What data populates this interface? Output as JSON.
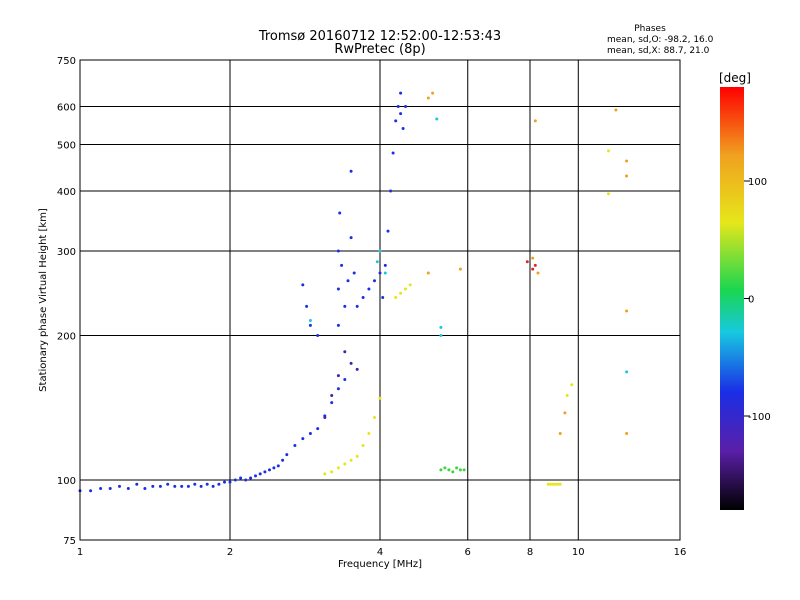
{
  "chart_data": {
    "type": "scatter",
    "title": "Tromsø 20160712 12:52:00-12:53:43",
    "subtitle": "RwPretec (8p)",
    "xlabel": "Frequency [MHz]",
    "ylabel": "Stationary phase Virtual Height [km]",
    "x_scale": "log",
    "y_scale": "log",
    "xlim": [
      1,
      16
    ],
    "ylim": [
      75,
      750
    ],
    "x_ticks": [
      1,
      2,
      4,
      6,
      8,
      10,
      16
    ],
    "y_ticks": [
      75,
      100,
      200,
      300,
      400,
      500,
      600,
      750
    ],
    "grid": true,
    "phase_legend": {
      "title": "Phases",
      "line_o": "mean, sd,O: -98.2, 16.0",
      "line_x": "mean, sd,X:  88.7, 21.0"
    },
    "colorbar": {
      "label": "[deg]",
      "range": [
        -180,
        180
      ],
      "ticks": [
        100,
        0,
        -100
      ]
    },
    "series": [
      {
        "color": "#1a2ee6",
        "points": [
          [
            1.0,
            95
          ],
          [
            1.05,
            95
          ],
          [
            1.1,
            96
          ],
          [
            1.15,
            96
          ],
          [
            1.2,
            97
          ],
          [
            1.25,
            96
          ],
          [
            1.3,
            98
          ],
          [
            1.35,
            96
          ],
          [
            1.4,
            97
          ],
          [
            1.45,
            97
          ],
          [
            1.5,
            98
          ],
          [
            1.55,
            97
          ],
          [
            1.6,
            97
          ],
          [
            1.65,
            97
          ],
          [
            1.7,
            98
          ],
          [
            1.75,
            97
          ],
          [
            1.8,
            98
          ],
          [
            1.85,
            97
          ],
          [
            1.9,
            98
          ],
          [
            1.95,
            99
          ],
          [
            2.0,
            99
          ],
          [
            2.05,
            100
          ],
          [
            2.1,
            101
          ],
          [
            2.15,
            100
          ],
          [
            2.2,
            101
          ],
          [
            2.25,
            102
          ],
          [
            2.3,
            103
          ],
          [
            2.35,
            104
          ],
          [
            2.4,
            105
          ],
          [
            2.45,
            106
          ],
          [
            2.5,
            107
          ],
          [
            2.55,
            110
          ],
          [
            2.6,
            113
          ],
          [
            2.7,
            118
          ],
          [
            2.8,
            122
          ],
          [
            2.9,
            125
          ],
          [
            3.0,
            128
          ],
          [
            3.1,
            136
          ],
          [
            3.2,
            145
          ],
          [
            3.3,
            155
          ],
          [
            3.4,
            162
          ],
          [
            3.3,
            210
          ],
          [
            3.3,
            250
          ],
          [
            3.3,
            300
          ],
          [
            3.32,
            360
          ],
          [
            3.35,
            280
          ],
          [
            3.4,
            230
          ],
          [
            3.45,
            260
          ],
          [
            3.5,
            320
          ],
          [
            3.55,
            270
          ],
          [
            3.6,
            230
          ],
          [
            3.7,
            240
          ],
          [
            3.8,
            250
          ],
          [
            3.9,
            260
          ],
          [
            4.0,
            270
          ],
          [
            4.05,
            240
          ],
          [
            4.1,
            280
          ],
          [
            4.15,
            330
          ],
          [
            4.2,
            400
          ],
          [
            4.25,
            480
          ],
          [
            4.3,
            560
          ],
          [
            4.35,
            600
          ],
          [
            4.4,
            580
          ],
          [
            4.45,
            540
          ],
          [
            4.5,
            600
          ],
          [
            3.5,
            440
          ],
          [
            2.8,
            255
          ],
          [
            2.85,
            230
          ],
          [
            2.9,
            210
          ],
          [
            3.0,
            200
          ],
          [
            4.4,
            640
          ]
        ]
      },
      {
        "color": "#4a1fa8",
        "points": [
          [
            3.1,
            135
          ],
          [
            3.2,
            150
          ],
          [
            3.3,
            165
          ],
          [
            3.4,
            185
          ],
          [
            3.5,
            175
          ],
          [
            3.6,
            170
          ]
        ]
      },
      {
        "color": "#18c8e0",
        "points": [
          [
            2.9,
            215
          ],
          [
            3.95,
            285
          ],
          [
            4.0,
            300
          ],
          [
            4.1,
            270
          ],
          [
            5.2,
            565
          ],
          [
            5.3,
            208
          ],
          [
            5.3,
            200
          ],
          [
            12.5,
            168
          ]
        ]
      },
      {
        "color": "#e6e61a",
        "points": [
          [
            3.1,
            103
          ],
          [
            3.2,
            104
          ],
          [
            3.3,
            106
          ],
          [
            3.4,
            108
          ],
          [
            3.5,
            110
          ],
          [
            3.6,
            112
          ],
          [
            3.7,
            118
          ],
          [
            3.8,
            125
          ],
          [
            3.9,
            135
          ],
          [
            4.0,
            148
          ],
          [
            4.3,
            240
          ],
          [
            4.4,
            245
          ],
          [
            4.5,
            250
          ],
          [
            4.6,
            255
          ],
          [
            8.7,
            98
          ],
          [
            8.8,
            98
          ],
          [
            8.9,
            98
          ],
          [
            9.0,
            98
          ],
          [
            9.1,
            98
          ],
          [
            9.2,
            98
          ],
          [
            9.5,
            150
          ],
          [
            9.7,
            158
          ],
          [
            11.5,
            485
          ],
          [
            11.5,
            395
          ]
        ]
      },
      {
        "color": "#3ad63a",
        "points": [
          [
            5.3,
            105
          ],
          [
            5.4,
            106
          ],
          [
            5.5,
            105
          ],
          [
            5.6,
            104
          ],
          [
            5.7,
            106
          ],
          [
            5.8,
            105
          ],
          [
            5.9,
            105
          ]
        ]
      },
      {
        "color": "#f0a020",
        "points": [
          [
            5.0,
            625
          ],
          [
            5.1,
            640
          ],
          [
            5.0,
            270
          ],
          [
            5.8,
            275
          ],
          [
            8.2,
            560
          ],
          [
            8.1,
            290
          ],
          [
            8.3,
            270
          ],
          [
            9.2,
            125
          ],
          [
            9.4,
            138
          ],
          [
            11.9,
            590
          ],
          [
            12.5,
            462
          ],
          [
            12.5,
            430
          ],
          [
            12.5,
            225
          ],
          [
            12.5,
            125
          ]
        ]
      },
      {
        "color": "#d62a2a",
        "points": [
          [
            8.1,
            275
          ],
          [
            8.2,
            280
          ],
          [
            7.9,
            285
          ]
        ]
      }
    ]
  }
}
